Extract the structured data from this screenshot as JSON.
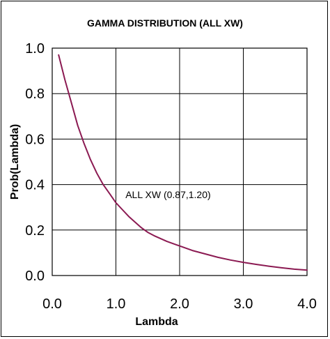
{
  "chart_data": {
    "type": "line",
    "title": "GAMMA DISTRIBUTION (ALL XW)",
    "xlabel": "Lambda",
    "ylabel": "Prob(Lambda)",
    "xlim": [
      0,
      4
    ],
    "ylim": [
      0,
      1
    ],
    "x_ticks": [
      "0.0",
      "1.0",
      "2.0",
      "3.0",
      "4.0"
    ],
    "y_ticks": [
      "0.0",
      "0.2",
      "0.4",
      "0.6",
      "0.8",
      "1.0"
    ],
    "grid": true,
    "line_color": "#8b1a52",
    "annotation": {
      "text": "ALL XW (0.87,1.20)",
      "x": 1.15,
      "y": 0.34
    },
    "series": [
      {
        "x": [
          0.1,
          0.2,
          0.3,
          0.4,
          0.5,
          0.6,
          0.7,
          0.8,
          0.9,
          1.0,
          1.1,
          1.2,
          1.3,
          1.4,
          1.5,
          1.6,
          1.8,
          2.0,
          2.2,
          2.4,
          2.6,
          2.8,
          3.0,
          3.2,
          3.4,
          3.6,
          3.8,
          4.0
        ],
        "values": [
          0.97,
          0.86,
          0.76,
          0.66,
          0.58,
          0.51,
          0.45,
          0.4,
          0.36,
          0.32,
          0.29,
          0.26,
          0.235,
          0.21,
          0.19,
          0.175,
          0.15,
          0.13,
          0.11,
          0.095,
          0.08,
          0.068,
          0.058,
          0.049,
          0.041,
          0.034,
          0.028,
          0.024
        ]
      }
    ]
  }
}
